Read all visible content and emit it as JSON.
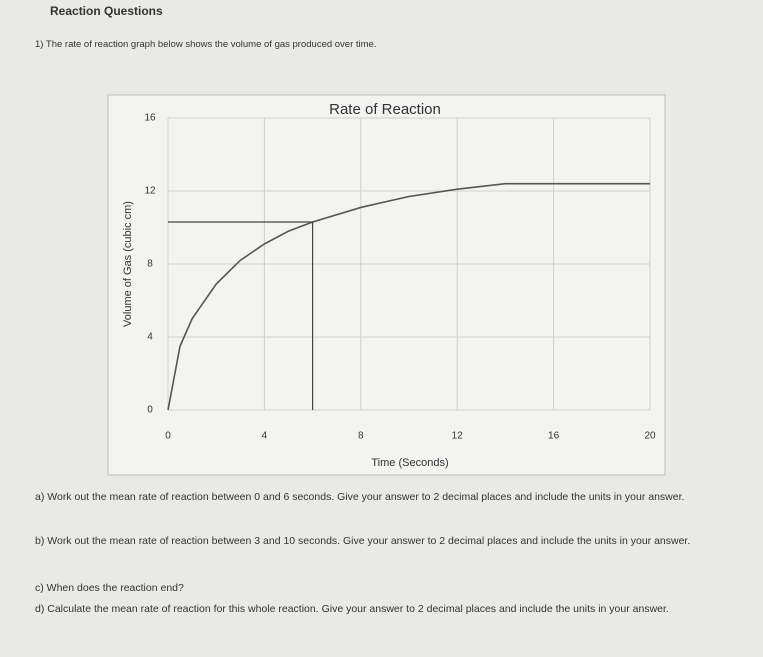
{
  "header": {
    "title": "Reaction Questions"
  },
  "intro": "1) The rate of reaction graph below shows the volume of gas produced over time.",
  "chart_data": {
    "type": "line",
    "title": "Rate of Reaction",
    "x_label": "Time (Seconds)",
    "y_label": "Volume of Gas (cubic cm)",
    "x": [
      0,
      0.5,
      1,
      2,
      3,
      4,
      5,
      6,
      8,
      10,
      12,
      14,
      16,
      18,
      20
    ],
    "series": [
      {
        "name": "Volume of gas",
        "color": "#555555",
        "values": [
          0,
          3.5,
          5,
          6.9,
          8.2,
          9.1,
          9.8,
          10.3,
          11.1,
          11.7,
          12.1,
          12.4,
          12.4,
          12.4,
          12.4
        ]
      }
    ],
    "xlim": [
      0,
      20
    ],
    "xticks": [
      0,
      4,
      8,
      12,
      16,
      20
    ],
    "ylim": [
      0,
      16
    ],
    "yticks": [
      0,
      4,
      8,
      12,
      16
    ],
    "grid": true
  },
  "questions": [
    "a) Work out the mean rate of reaction between 0 and 6 seconds. Give your answer to 2 decimal places and include the units in your answer.",
    "b) Work out the mean rate of reaction between 3 and 10 seconds. Give your answer to 2 decimal places and include the units in your answer.",
    "c) When does the reaction end?",
    "d) Calculate the mean rate of reaction for this whole reaction. Give your answer to 2 decimal places and include the units in your answer."
  ]
}
